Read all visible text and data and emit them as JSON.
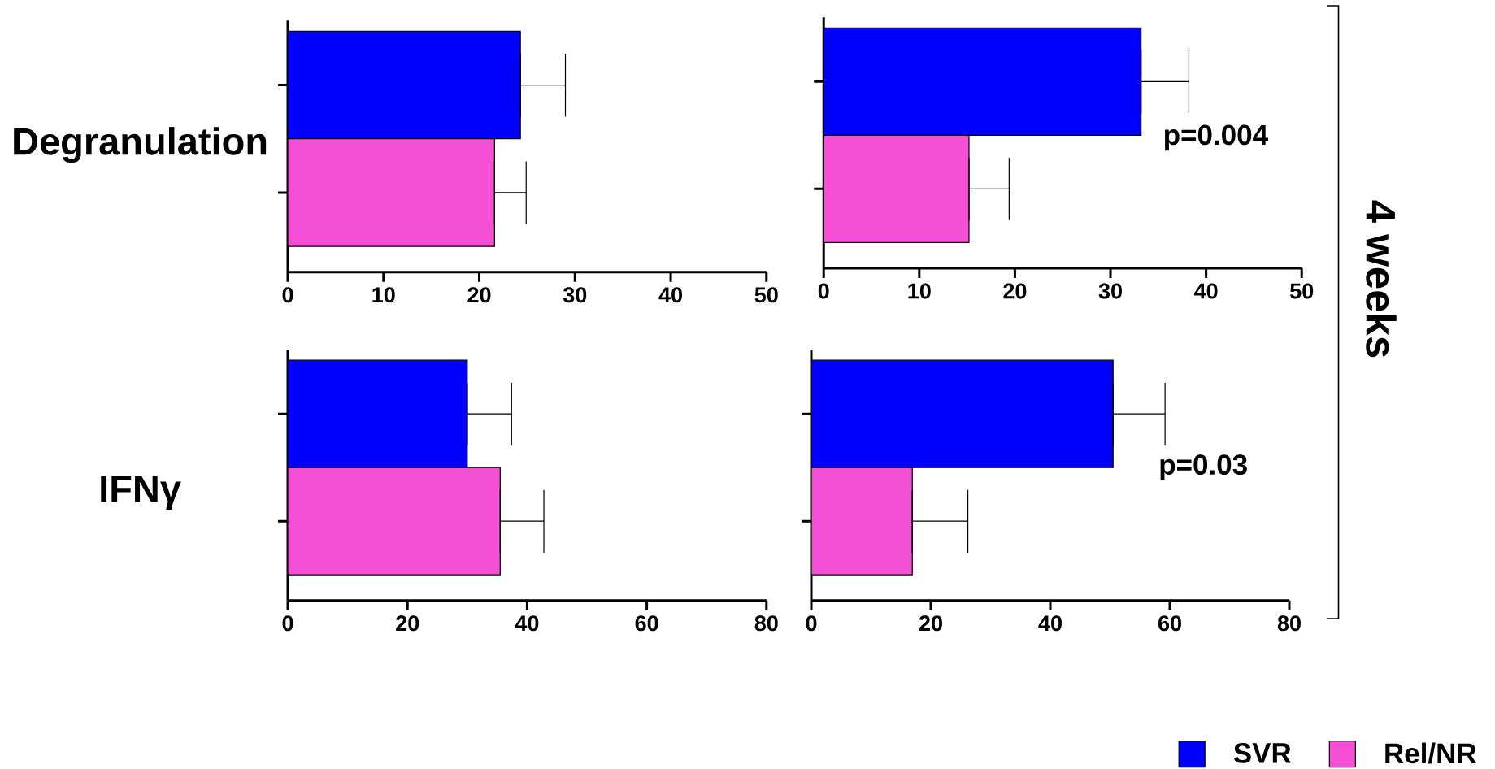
{
  "chart_data": [
    {
      "type": "bar",
      "orientation": "horizontal",
      "ylabel": "Degranulation",
      "categories": [
        null,
        null
      ],
      "series": [
        {
          "color": "#0000ff",
          "values": [
            24.3,
            null
          ],
          "errors": [
            [
              24.3,
              29.0
            ],
            null
          ]
        },
        {
          "color": "#f54fd6",
          "values": [
            null,
            21.6
          ],
          "errors": [
            null,
            [
              21.6,
              24.9
            ]
          ]
        }
      ],
      "xlim": [
        0,
        50
      ],
      "xticks": [
        0,
        10,
        20,
        30,
        40,
        50
      ],
      "tick_labels": "x"
    },
    {
      "type": "bar",
      "orientation": "horizontal",
      "categories": [
        null,
        null
      ],
      "series": [
        {
          "color": "#0000ff",
          "values": [
            33.2,
            null
          ],
          "errors": [
            [
              33.2,
              38.2
            ],
            null
          ]
        },
        {
          "color": "#f54fd6",
          "values": [
            null,
            15.2
          ],
          "errors": [
            null,
            [
              15.2,
              19.4
            ]
          ]
        }
      ],
      "xlim": [
        0,
        50
      ],
      "xticks": [
        0,
        10,
        20,
        30,
        40,
        50
      ],
      "tick_labels": "x",
      "annotations": [
        "p=0.004",
        "4 weeks"
      ]
    },
    {
      "type": "bar",
      "orientation": "horizontal",
      "ylabel": "IFNγ",
      "categories": [
        null,
        null
      ],
      "series": [
        {
          "color": "#0000ff",
          "values": [
            30.0,
            null
          ],
          "errors": [
            [
              30.0,
              37.4
            ],
            null
          ]
        },
        {
          "color": "#f54fd6",
          "values": [
            null,
            35.5
          ],
          "errors": [
            null,
            [
              35.5,
              42.8
            ]
          ]
        }
      ],
      "xlim": [
        0,
        80
      ],
      "xticks": [
        0,
        20,
        40,
        60,
        80
      ],
      "tick_labels": "x"
    },
    {
      "type": "bar",
      "orientation": "horizontal",
      "categories": [
        null,
        null
      ],
      "series": [
        {
          "name": "SVR",
          "color": "#0000ff",
          "values": [
            50.5,
            null
          ],
          "errors": [
            [
              50.5,
              59.2
            ],
            null
          ]
        },
        {
          "name": "Rel/NR",
          "color": "#f54fd6",
          "values": [
            null,
            16.9
          ],
          "errors": [
            null,
            [
              16.9,
              26.2
            ]
          ]
        }
      ],
      "xlim": [
        0,
        80
      ],
      "xticks": [
        0,
        20,
        40,
        60,
        80
      ],
      "tick_labels": "x",
      "annotations": [
        "p=0.03"
      ],
      "legend": "bottom right"
    }
  ]
}
